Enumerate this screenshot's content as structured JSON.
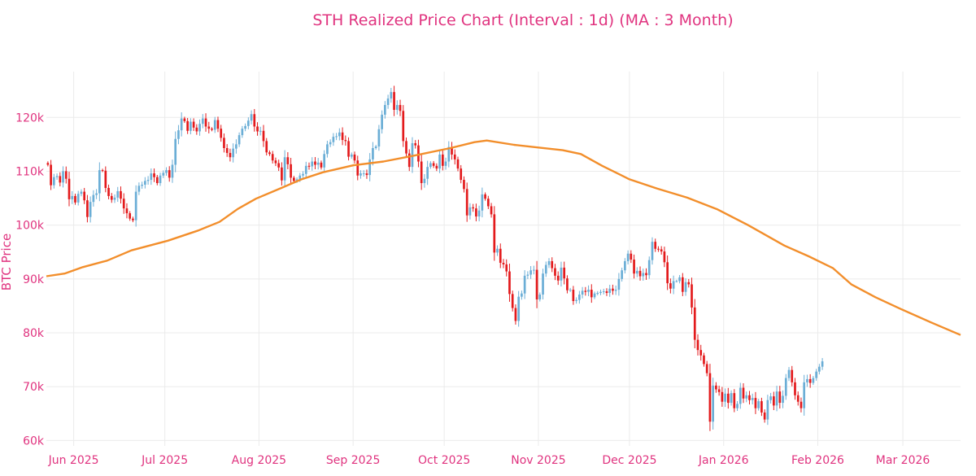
{
  "chart_data": {
    "type": "candlestick+line",
    "title": "STH Realized Price Chart (Interval : 1d) (MA : 3 Month)",
    "ylabel": "BTC Price",
    "xlabel": "",
    "ylim": [
      59000,
      128500
    ],
    "x_range": [
      "2025-05-23",
      "2026-03-20"
    ],
    "y_ticks": [
      {
        "value": 60000,
        "label": "60k"
      },
      {
        "value": 70000,
        "label": "70k"
      },
      {
        "value": 80000,
        "label": "80k"
      },
      {
        "value": 90000,
        "label": "90k"
      },
      {
        "value": 100000,
        "label": "100k"
      },
      {
        "value": 110000,
        "label": "110k"
      },
      {
        "value": 120000,
        "label": "120k"
      }
    ],
    "x_ticks": [
      {
        "date": "2025-06-01",
        "label": "Jun 2025"
      },
      {
        "date": "2025-07-01",
        "label": "Jul 2025"
      },
      {
        "date": "2025-08-01",
        "label": "Aug 2025"
      },
      {
        "date": "2025-09-01",
        "label": "Sep 2025"
      },
      {
        "date": "2025-10-01",
        "label": "Oct 2025"
      },
      {
        "date": "2025-11-01",
        "label": "Nov 2025"
      },
      {
        "date": "2025-12-01",
        "label": "Dec 2025"
      },
      {
        "date": "2026-01-01",
        "label": "Jan 2026"
      },
      {
        "date": "2026-02-01",
        "label": "Feb 2026"
      },
      {
        "date": "2026-03-01",
        "label": "Mar 2026"
      }
    ],
    "grid": true,
    "colors": {
      "up": "#6baed6",
      "down": "#e31a1c",
      "ma": "#f28e2b",
      "title": "#e0337f",
      "axis_text": "#e0337f",
      "grid": "#ebebeb"
    },
    "series": [
      {
        "name": "BTC Price",
        "kind": "candlestick",
        "start_date": "2025-05-23",
        "closes": [
          111200,
          107400,
          108900,
          109100,
          107900,
          110000,
          108600,
          104800,
          105400,
          104200,
          105800,
          106200,
          104600,
          101500,
          104300,
          105600,
          105900,
          110200,
          110100,
          106900,
          105400,
          104700,
          105100,
          106300,
          104900,
          103100,
          102200,
          101200,
          100900,
          106200,
          107300,
          107500,
          108200,
          108400,
          109600,
          108900,
          107800,
          109200,
          109700,
          110200,
          108800,
          111200,
          116000,
          117600,
          119800,
          119300,
          117500,
          119200,
          118100,
          117400,
          118800,
          119800,
          118300,
          117900,
          117700,
          119500,
          117900,
          116200,
          114300,
          113400,
          112600,
          114200,
          115000,
          116700,
          117900,
          118400,
          119400,
          120600,
          118300,
          117400,
          117500,
          115600,
          113500,
          113200,
          112000,
          111500,
          110700,
          108300,
          112600,
          111300,
          108800,
          108200,
          108500,
          109200,
          109500,
          111000,
          110900,
          111800,
          111200,
          111600,
          110700,
          113200,
          115000,
          115400,
          116400,
          116500,
          117200,
          115800,
          115600,
          112700,
          113100,
          112000,
          109200,
          109600,
          109600,
          109300,
          112200,
          114300,
          114600,
          117800,
          120500,
          122300,
          123500,
          124700,
          121400,
          122300,
          121200,
          115600,
          113300,
          110800,
          115200,
          114800,
          111800,
          107800,
          108600,
          110800,
          111500,
          111000,
          110500,
          113100,
          111000,
          111800,
          114500,
          113100,
          112200,
          110500,
          108400,
          106700,
          101800,
          103300,
          103100,
          101600,
          102700,
          105700,
          104900,
          103500,
          102000,
          94900,
          95600,
          93000,
          92700,
          91400,
          87200,
          84600,
          82200,
          86700,
          87300,
          90600,
          90800,
          91600,
          91700,
          86200,
          87100,
          91000,
          92600,
          93300,
          92000,
          90600,
          89700,
          92100,
          90100,
          87900,
          88000,
          85900,
          86100,
          87100,
          87800,
          87600,
          88000,
          86600,
          87300,
          87400,
          87600,
          87700,
          87400,
          88200,
          87800,
          88000,
          90000,
          91600,
          93300,
          94700,
          93600,
          91000,
          91500,
          90500,
          91100,
          90700,
          93500,
          96900,
          95600,
          95500,
          95100,
          93100,
          89200,
          88200,
          89600,
          89600,
          90300,
          87600,
          89400,
          89000,
          84700,
          78700,
          76800,
          75800,
          74200,
          72500,
          63500,
          70200,
          69500,
          69000,
          67200,
          68700,
          67000,
          68800,
          66000,
          66800,
          69800,
          67800,
          68400,
          67500,
          67900,
          66000,
          67300,
          65200,
          63900,
          67500,
          68200,
          66500,
          69100,
          67000,
          68300,
          71600,
          73100,
          70800,
          68400,
          67200,
          66000,
          70800,
          71400,
          70700,
          71600,
          72800,
          73700,
          74700
        ]
      },
      {
        "name": "STH Realized Price (MA 3 Month)",
        "kind": "line",
        "start_date": "2025-05-23",
        "points": [
          {
            "day": 0,
            "value": 90500
          },
          {
            "day": 6,
            "value": 91000
          },
          {
            "day": 12,
            "value": 92200
          },
          {
            "day": 20,
            "value": 93400
          },
          {
            "day": 28,
            "value": 95300
          },
          {
            "day": 40,
            "value": 97100
          },
          {
            "day": 50,
            "value": 99000
          },
          {
            "day": 57,
            "value": 100600
          },
          {
            "day": 63,
            "value": 103000
          },
          {
            "day": 69,
            "value": 104900
          },
          {
            "day": 77,
            "value": 106800
          },
          {
            "day": 84,
            "value": 108500
          },
          {
            "day": 91,
            "value": 109800
          },
          {
            "day": 101,
            "value": 111100
          },
          {
            "day": 111,
            "value": 111800
          },
          {
            "day": 121,
            "value": 112900
          },
          {
            "day": 133,
            "value": 114300
          },
          {
            "day": 141,
            "value": 115400
          },
          {
            "day": 145,
            "value": 115700
          },
          {
            "day": 154,
            "value": 114900
          },
          {
            "day": 162,
            "value": 114400
          },
          {
            "day": 170,
            "value": 113900
          },
          {
            "day": 176,
            "value": 113200
          },
          {
            "day": 183,
            "value": 111000
          },
          {
            "day": 192,
            "value": 108500
          },
          {
            "day": 201,
            "value": 106800
          },
          {
            "day": 211,
            "value": 105100
          },
          {
            "day": 221,
            "value": 102900
          },
          {
            "day": 231,
            "value": 100000
          },
          {
            "day": 243,
            "value": 96200
          },
          {
            "day": 251,
            "value": 94200
          },
          {
            "day": 259,
            "value": 92000
          },
          {
            "day": 265,
            "value": 89000
          },
          {
            "day": 273,
            "value": 86600
          },
          {
            "day": 281,
            "value": 84500
          },
          {
            "day": 291,
            "value": 82000
          },
          {
            "day": 301,
            "value": 79600
          }
        ]
      }
    ]
  }
}
